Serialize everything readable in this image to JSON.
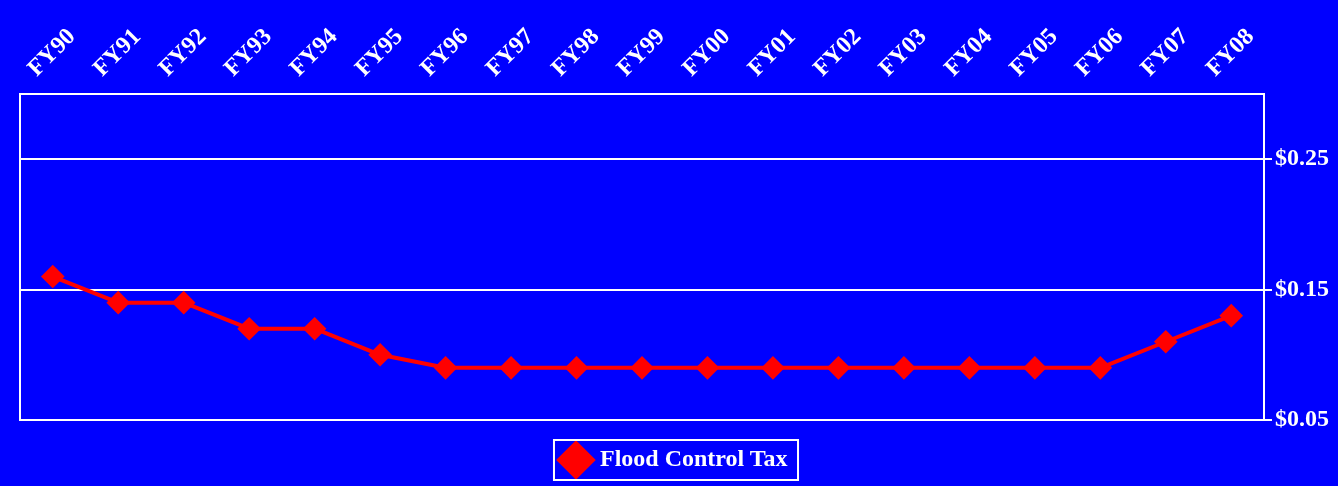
{
  "chart_data": {
    "type": "line",
    "categories": [
      "FY90",
      "FY91",
      "FY92",
      "FY93",
      "FY94",
      "FY95",
      "FY96",
      "FY97",
      "FY98",
      "FY99",
      "FY00",
      "FY01",
      "FY02",
      "FY03",
      "FY04",
      "FY05",
      "FY06",
      "FY07",
      "FY08"
    ],
    "series": [
      {
        "name": "Flood Control Tax",
        "color": "#ff0000",
        "values": [
          0.16,
          0.14,
          0.14,
          0.12,
          0.12,
          0.1,
          0.09,
          0.09,
          0.09,
          0.09,
          0.09,
          0.09,
          0.09,
          0.09,
          0.09,
          0.09,
          0.09,
          0.11,
          0.13
        ]
      }
    ],
    "ylim": [
      0.05,
      0.3
    ],
    "yticks": [
      {
        "value": 0.05,
        "label": "$0.05"
      },
      {
        "value": 0.15,
        "label": "$0.15"
      },
      {
        "value": 0.25,
        "label": "$0.25"
      }
    ],
    "grid": "y",
    "legend": "bottom",
    "marker": "diamond",
    "line_style": "solid"
  }
}
